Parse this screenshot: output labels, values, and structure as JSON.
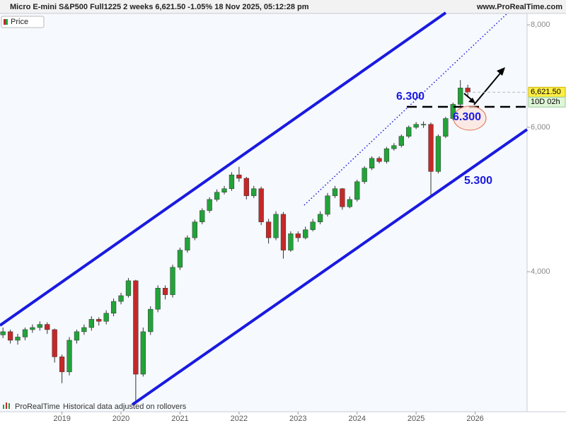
{
  "chart_data": {
    "type": "candlestick",
    "title": "Micro E-mini S&P500 Full1225 2 weeks 6,621.50 -1.05% 18 Nov 2025, 05:12:28 pm",
    "source": "www.ProRealTime.com",
    "legend_label": "Price",
    "footer": "ProRealTime",
    "footer_note": "Historical data adjusted on rollovers",
    "annotations": [
      "6.300",
      "6.300",
      "5.300"
    ],
    "last_price": {
      "value": 6621.5,
      "label": "6,621.50"
    },
    "countdown": "10D 02h",
    "up_color": "#22a339",
    "down_color": "#c62828",
    "channel_color": "#1a1ae0",
    "log_scale": true,
    "xlim": [
      2017.95,
      2026.88
    ],
    "xticks": [
      2019,
      2020,
      2021,
      2022,
      2023,
      2024,
      2025,
      2026
    ],
    "ylim": [
      2700,
      8260
    ],
    "yticks": [
      {
        "value": 4000,
        "label": "4,000"
      },
      {
        "value": 6000,
        "label": "6,000"
      },
      {
        "value": 8000,
        "label": "8,000"
      }
    ],
    "x": [
      2018.0,
      2018.125,
      2018.25,
      2018.375,
      2018.5,
      2018.625,
      2018.75,
      2018.875,
      2019.0,
      2019.125,
      2019.25,
      2019.375,
      2019.5,
      2019.625,
      2019.75,
      2019.875,
      2020.0,
      2020.125,
      2020.25,
      2020.375,
      2020.5,
      2020.625,
      2020.75,
      2020.875,
      2021.0,
      2021.125,
      2021.25,
      2021.375,
      2021.5,
      2021.625,
      2021.75,
      2021.875,
      2022.0,
      2022.125,
      2022.25,
      2022.375,
      2022.5,
      2022.625,
      2022.75,
      2022.875,
      2023.0,
      2023.125,
      2023.25,
      2023.375,
      2023.5,
      2023.625,
      2023.75,
      2023.875,
      2024.0,
      2024.125,
      2024.25,
      2024.375,
      2024.5,
      2024.625,
      2024.75,
      2024.875,
      2025.0,
      2025.125,
      2025.25,
      2025.375,
      2025.5,
      2025.625,
      2025.75,
      2025.875
    ],
    "open": [
      3350,
      3380,
      3300,
      3330,
      3400,
      3420,
      3450,
      3400,
      3150,
      3020,
      3300,
      3380,
      3420,
      3500,
      3480,
      3560,
      3680,
      3740,
      3900,
      3000,
      3380,
      3600,
      3820,
      3750,
      4050,
      4250,
      4400,
      4600,
      4750,
      4900,
      5000,
      5050,
      5250,
      5200,
      4950,
      5050,
      4600,
      4400,
      4700,
      4250,
      4450,
      4400,
      4500,
      4600,
      4700,
      4950,
      5050,
      4800,
      4900,
      5150,
      5350,
      5500,
      5450,
      5650,
      5700,
      5850,
      6000,
      6050,
      6050,
      5300,
      5850,
      6150,
      6400,
      6700
    ],
    "high": [
      3420,
      3400,
      3360,
      3420,
      3450,
      3480,
      3470,
      3410,
      3170,
      3330,
      3400,
      3450,
      3530,
      3520,
      3590,
      3710,
      3770,
      3930,
      3910,
      3420,
      3630,
      3850,
      3850,
      4080,
      4280,
      4430,
      4630,
      4780,
      4930,
      5040,
      5090,
      5290,
      5370,
      5220,
      5090,
      5080,
      4640,
      4740,
      4730,
      4480,
      4480,
      4540,
      4640,
      4740,
      4990,
      5090,
      5060,
      4940,
      5180,
      5380,
      5530,
      5530,
      5680,
      5740,
      5880,
      6030,
      6090,
      6100,
      6080,
      5880,
      6180,
      6430,
      6850,
      6760
    ],
    "low": [
      3320,
      3270,
      3260,
      3300,
      3370,
      3390,
      3360,
      3100,
      2925,
      2990,
      3270,
      3350,
      3390,
      3440,
      3450,
      3530,
      3650,
      3720,
      2756,
      2980,
      3350,
      3570,
      3700,
      3720,
      4020,
      4220,
      4370,
      4570,
      4720,
      4870,
      4970,
      5020,
      5150,
      4900,
      4920,
      4560,
      4330,
      4370,
      4150,
      4230,
      4350,
      4380,
      4480,
      4570,
      4670,
      4920,
      4760,
      4780,
      4870,
      5120,
      5320,
      5420,
      5420,
      5620,
      5670,
      5820,
      5970,
      5990,
      4960,
      5270,
      5820,
      6120,
      6370,
      6550
    ],
    "close": [
      3380,
      3300,
      3330,
      3400,
      3420,
      3450,
      3400,
      3150,
      3020,
      3300,
      3380,
      3420,
      3500,
      3480,
      3560,
      3680,
      3740,
      3900,
      3000,
      3380,
      3600,
      3820,
      3750,
      4050,
      4250,
      4400,
      4600,
      4750,
      4900,
      5000,
      5050,
      5250,
      5200,
      4950,
      5050,
      4600,
      4400,
      4700,
      4250,
      4450,
      4400,
      4500,
      4600,
      4700,
      4950,
      5050,
      4800,
      4900,
      5150,
      5350,
      5500,
      5450,
      5650,
      5700,
      5850,
      6000,
      6050,
      6050,
      5300,
      5850,
      6150,
      6400,
      6700,
      6621.5
    ]
  }
}
